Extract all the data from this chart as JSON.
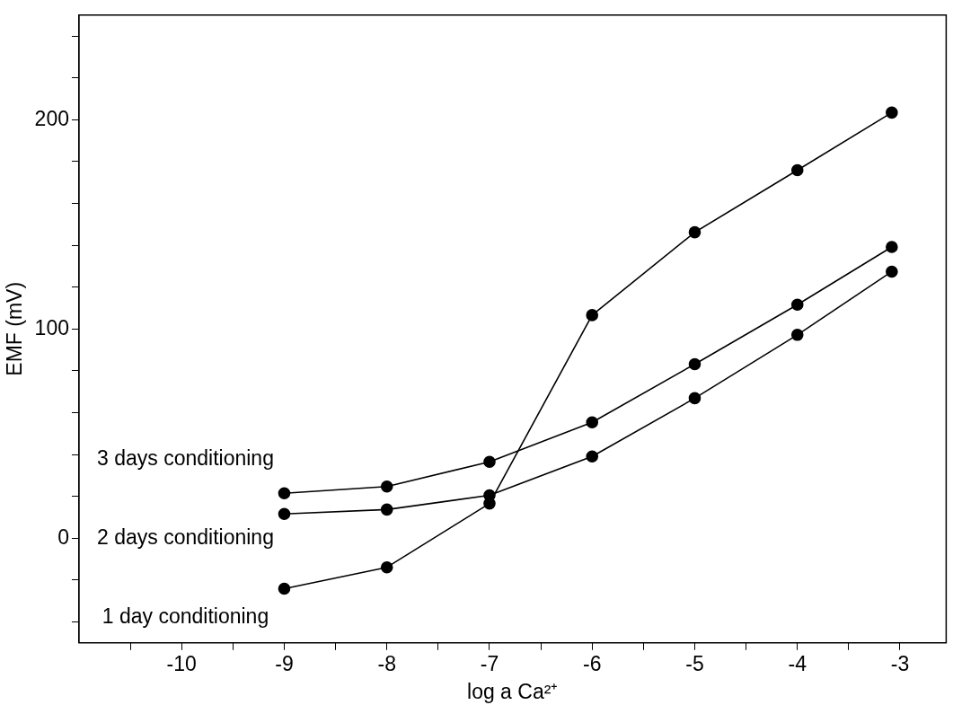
{
  "chart_data": {
    "type": "line",
    "xlabel": "log a Ca²⁺",
    "ylabel": "EMF (mV)",
    "xlim": [
      -11,
      -2.55
    ],
    "ylim": [
      -50,
      250
    ],
    "xticks": [
      {
        "value": -10.5,
        "label": null
      },
      -10,
      {
        "value": -9.5,
        "label": null
      },
      -9,
      {
        "value": -8.5,
        "label": null
      },
      -8,
      {
        "value": -7.5,
        "label": null
      },
      -7,
      {
        "value": -6.5,
        "label": null
      },
      -6,
      {
        "value": -5.5,
        "label": null
      },
      -5,
      {
        "value": -4.5,
        "label": null
      },
      -4,
      {
        "value": -3.5,
        "label": null
      },
      -3
    ],
    "yticks": [
      {
        "value": -40,
        "label": null
      },
      {
        "value": -20,
        "label": null
      },
      0,
      {
        "value": 20,
        "label": null
      },
      {
        "value": 40,
        "label": null
      },
      {
        "value": 60,
        "label": null
      },
      {
        "value": 80,
        "label": null
      },
      100,
      {
        "value": 120,
        "label": null
      },
      {
        "value": 140,
        "label": null
      },
      {
        "value": 160,
        "label": null
      },
      {
        "value": 180,
        "label": null
      },
      200,
      {
        "value": 220,
        "label": null
      },
      {
        "value": 240,
        "label": null
      }
    ],
    "x": [
      -9,
      -8,
      -7,
      -6,
      -5,
      -4,
      -3.08
    ],
    "series": [
      {
        "name": "1 day conditioning",
        "color": "#000000",
        "values": [
          -24.1,
          -13.9,
          16.6,
          106.6,
          146.2,
          175.9,
          203.4
        ]
      },
      {
        "name": "2 days conditioning",
        "color": "#000000",
        "values": [
          11.6,
          13.7,
          20.5,
          39.1,
          66.9,
          97.2,
          127.4
        ]
      },
      {
        "name": "3 days conditioning",
        "color": "#000000",
        "values": [
          21.5,
          24.7,
          36.5,
          55.4,
          83.2,
          111.6,
          139.2
        ]
      }
    ],
    "marker": "circle",
    "line_style": "solid",
    "grid": false,
    "legend": false
  }
}
